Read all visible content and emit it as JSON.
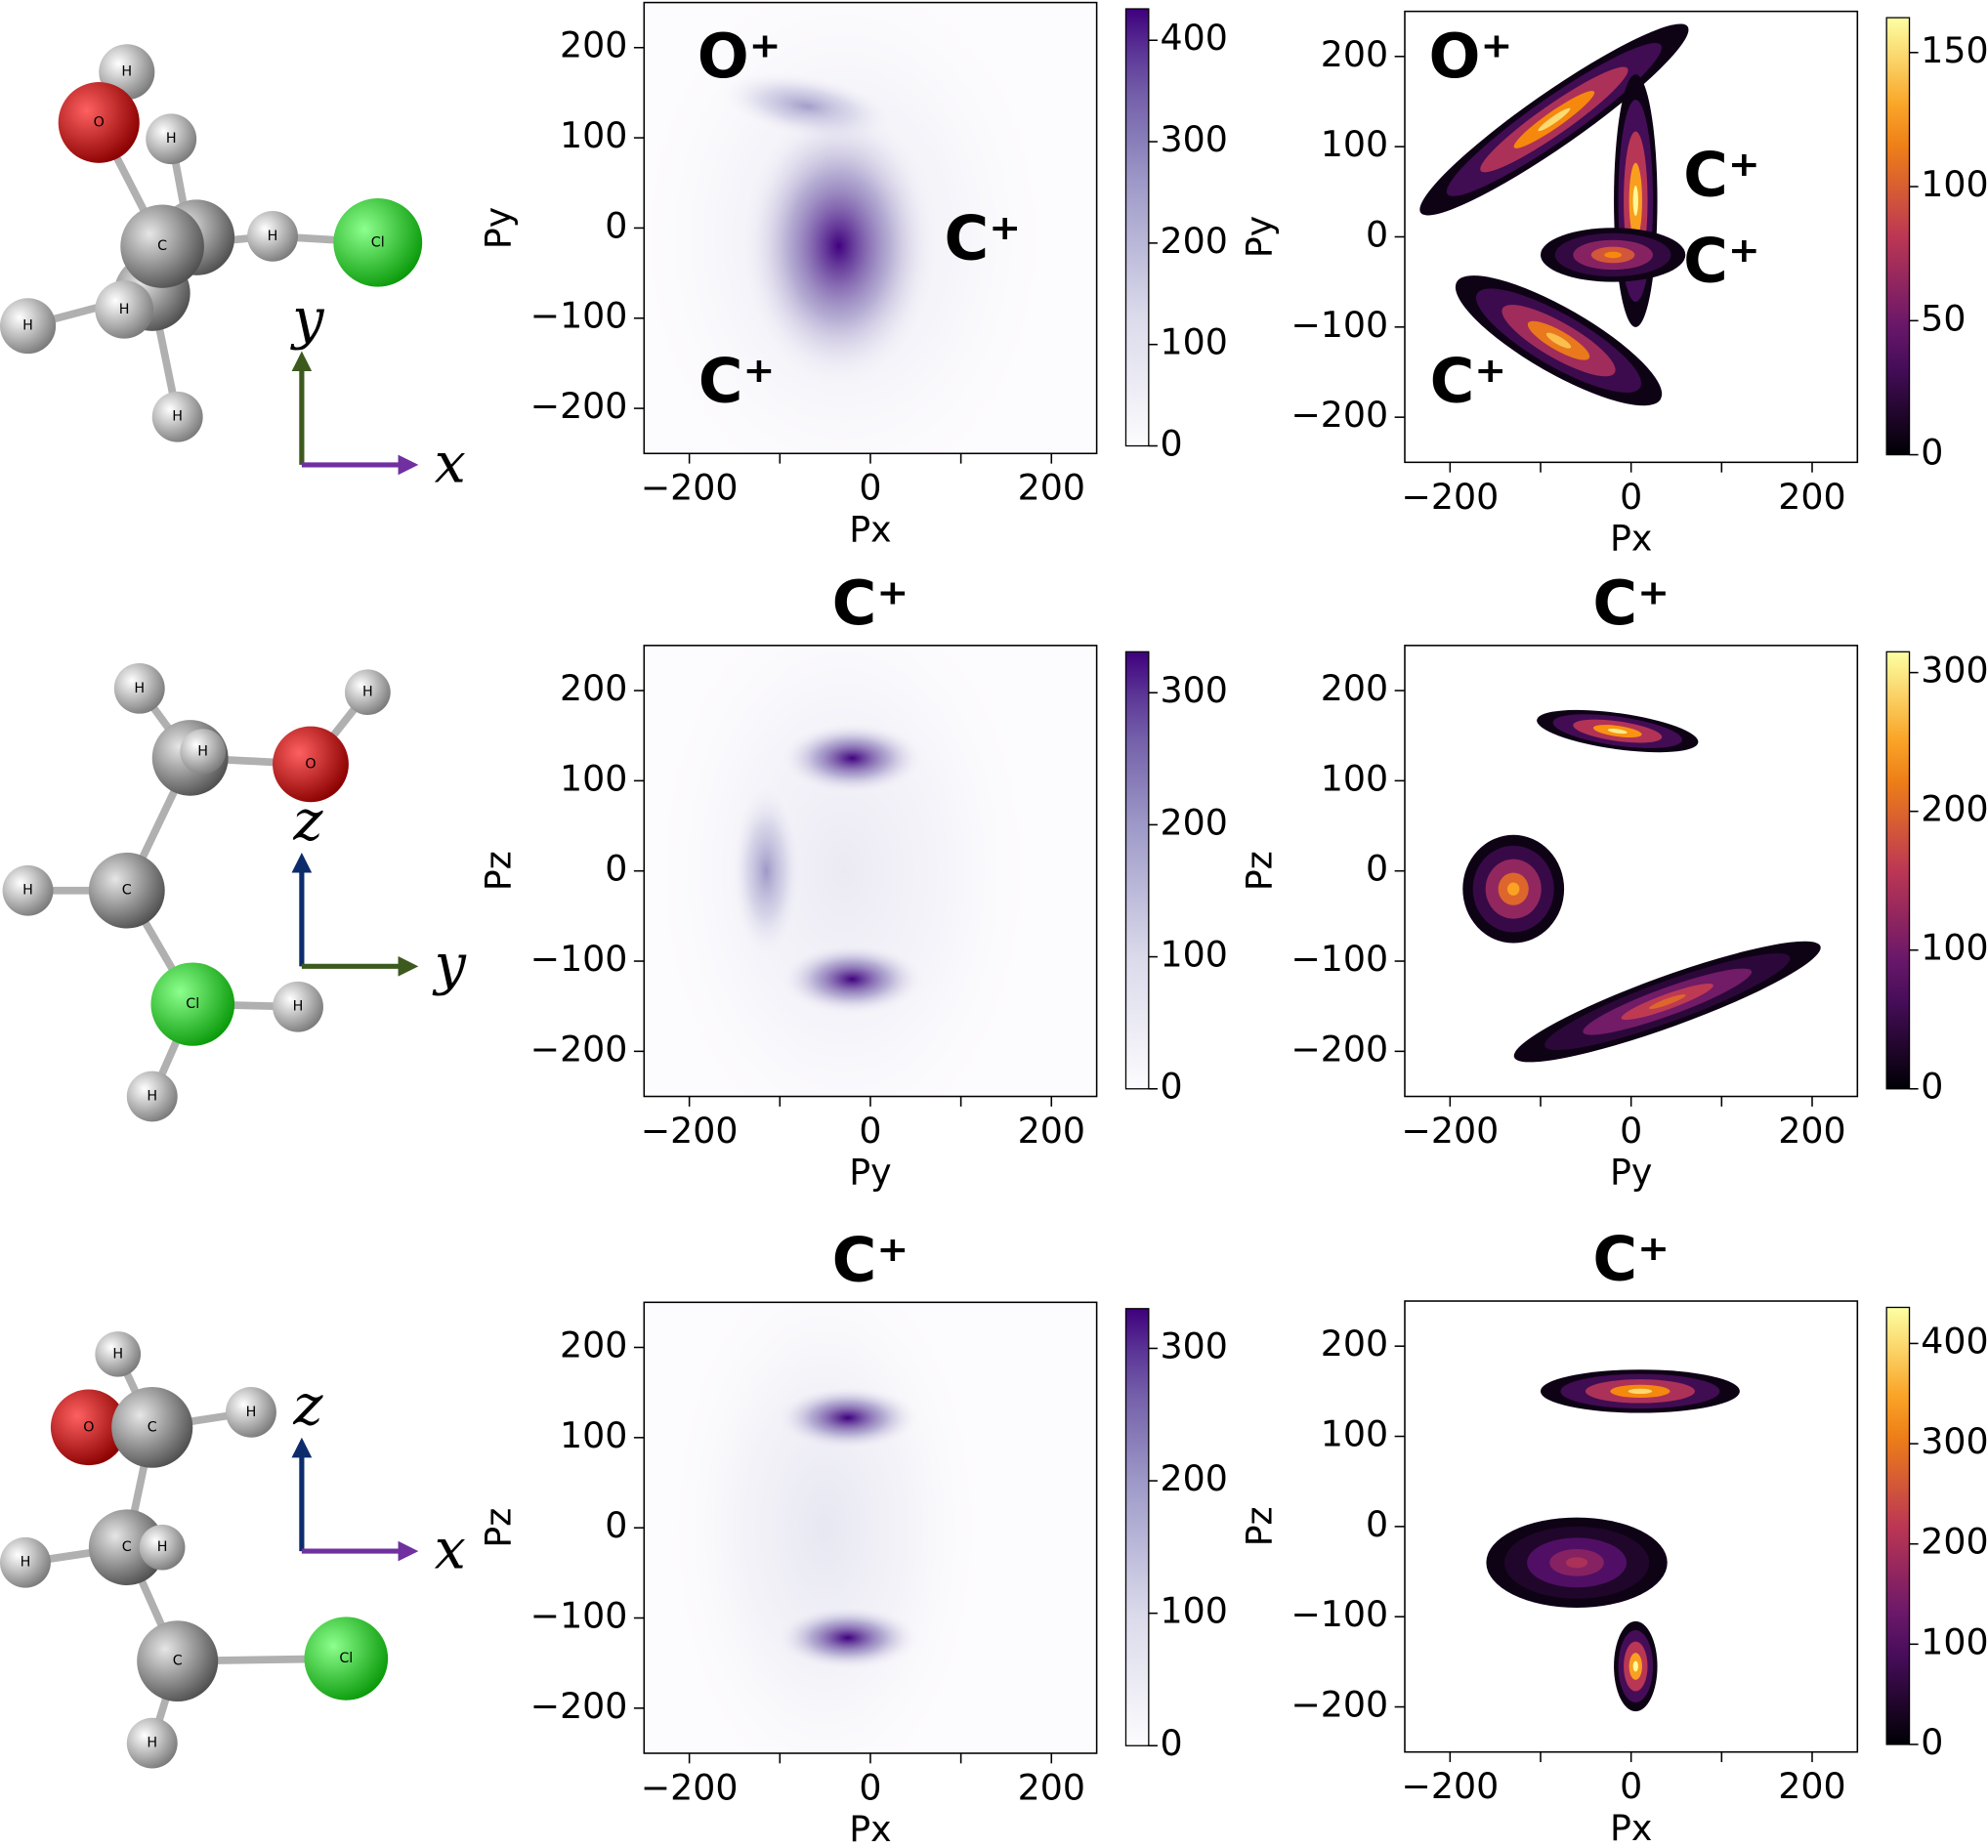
{
  "molecules": [
    {
      "atoms": [
        "H",
        "O",
        "H",
        "C",
        "H",
        "Cl",
        "H",
        "H",
        "H"
      ],
      "axes": [
        {
          "label": "y",
          "color": "#3d5a1e"
        },
        {
          "label": "x",
          "color": "#7030a0"
        }
      ]
    },
    {
      "atoms": [
        "H",
        "H",
        "O",
        "H",
        "H",
        "C",
        "Cl",
        "H",
        "H"
      ],
      "axes": [
        {
          "label": "z",
          "color": "#0d2c6c"
        },
        {
          "label": "y",
          "color": "#3d5a1e"
        }
      ]
    },
    {
      "atoms": [
        "H",
        "O",
        "C",
        "H",
        "C",
        "H",
        "H",
        "C",
        "Cl",
        "H"
      ],
      "axes": [
        {
          "label": "z",
          "color": "#0d2c6c"
        },
        {
          "label": "x",
          "color": "#7030a0"
        }
      ]
    }
  ],
  "chart_data": [
    {
      "type": "heatmap",
      "xlabel": "Px",
      "ylabel": "Py",
      "colormap": "Purples",
      "annotations": [
        "O⁺",
        "C⁺",
        "C⁺"
      ],
      "xlim": [
        -250,
        250
      ],
      "ylim": [
        -250,
        250
      ],
      "xticks": [
        {
          "value": -200,
          "label": "−200"
        },
        0,
        200
      ],
      "xminorticks": [
        -100,
        100
      ],
      "yticks": [
        {
          "value": -200,
          "label": "−200"
        },
        {
          "value": -100,
          "label": "−100"
        },
        0,
        100,
        200
      ],
      "clim": [
        0,
        431
      ],
      "cticks": [
        0,
        100,
        200,
        300,
        400
      ],
      "clusters": [
        {
          "x": -30,
          "y": -10,
          "sx": 120,
          "sy": 160,
          "angle": 0,
          "peak": 60
        },
        {
          "x": -70,
          "y": 135,
          "sx": 50,
          "sy": 18,
          "angle": -10,
          "peak": 250
        },
        {
          "x": -35,
          "y": -20,
          "sx": 55,
          "sy": 80,
          "angle": 0,
          "peak": 430
        }
      ]
    },
    {
      "type": "heatmap",
      "xlabel": "Px",
      "ylabel": "Py",
      "colormap": "inferno",
      "annotations": [
        "O⁺",
        "C⁺",
        "C⁺",
        "C⁺"
      ],
      "xlim": [
        -250,
        250
      ],
      "ylim": [
        -250,
        250
      ],
      "xticks": [
        {
          "value": -200,
          "label": "−200"
        },
        0,
        200
      ],
      "xminorticks": [
        -100,
        100
      ],
      "yticks": [
        {
          "value": -200,
          "label": "−200"
        },
        {
          "value": -100,
          "label": "−100"
        },
        0,
        100,
        200
      ],
      "clim": [
        0,
        163
      ],
      "cticks": [
        0,
        50,
        100,
        150
      ],
      "clusters": [
        {
          "x": -85,
          "y": 130,
          "sx": 90,
          "sy": 15,
          "angle": 35,
          "peak": 150
        },
        {
          "x": 5,
          "y": 40,
          "sx": 12,
          "sy": 70,
          "angle": 0,
          "peak": 160
        },
        {
          "x": -20,
          "y": -20,
          "sx": 40,
          "sy": 15,
          "angle": 0,
          "peak": 120
        },
        {
          "x": -80,
          "y": -115,
          "sx": 65,
          "sy": 18,
          "angle": -30,
          "peak": 140
        }
      ]
    },
    {
      "type": "heatmap",
      "title": "C⁺",
      "xlabel": "Py",
      "ylabel": "Pz",
      "colormap": "Purples",
      "xlim": [
        -250,
        250
      ],
      "ylim": [
        -250,
        250
      ],
      "xticks": [
        {
          "value": -200,
          "label": "−200"
        },
        0,
        200
      ],
      "xminorticks": [
        -100,
        100
      ],
      "yticks": [
        {
          "value": -200,
          "label": "−200"
        },
        {
          "value": -100,
          "label": "−100"
        },
        0,
        100,
        200
      ],
      "clim": [
        0,
        331
      ],
      "cticks": [
        0,
        100,
        200,
        300
      ],
      "clusters": [
        {
          "x": -30,
          "y": 0,
          "sx": 110,
          "sy": 170,
          "angle": 0,
          "peak": 50
        },
        {
          "x": -115,
          "y": 0,
          "sx": 20,
          "sy": 50,
          "angle": 0,
          "peak": 200
        },
        {
          "x": -20,
          "y": 125,
          "sx": 40,
          "sy": 20,
          "angle": 0,
          "peak": 330
        },
        {
          "x": -20,
          "y": -120,
          "sx": 40,
          "sy": 20,
          "angle": 0,
          "peak": 330
        }
      ]
    },
    {
      "type": "heatmap",
      "title": "C⁺",
      "xlabel": "Py",
      "ylabel": "Pz",
      "colormap": "inferno",
      "xlim": [
        -250,
        250
      ],
      "ylim": [
        -250,
        250
      ],
      "xticks": [
        {
          "value": -200,
          "label": "−200"
        },
        0,
        200
      ],
      "xminorticks": [
        -100,
        100
      ],
      "yticks": [
        {
          "value": -200,
          "label": "−200"
        },
        {
          "value": -100,
          "label": "−100"
        },
        0,
        100,
        200
      ],
      "clim": [
        0,
        315
      ],
      "cticks": [
        0,
        100,
        200,
        300
      ],
      "clusters": [
        {
          "x": -15,
          "y": 155,
          "sx": 45,
          "sy": 10,
          "angle": -8,
          "peak": 300
        },
        {
          "x": -130,
          "y": -20,
          "sx": 28,
          "sy": 30,
          "angle": 0,
          "peak": 250
        },
        {
          "x": 40,
          "y": -145,
          "sx": 90,
          "sy": 14,
          "angle": 20,
          "peak": 200
        }
      ]
    },
    {
      "type": "heatmap",
      "title": "C⁺",
      "xlabel": "Px",
      "ylabel": "Pz",
      "colormap": "Purples",
      "xlim": [
        -250,
        250
      ],
      "ylim": [
        -250,
        250
      ],
      "xticks": [
        {
          "value": -200,
          "label": "−200"
        },
        0,
        200
      ],
      "xminorticks": [
        -100,
        100
      ],
      "yticks": [
        {
          "value": -200,
          "label": "−200"
        },
        {
          "value": -100,
          "label": "−100"
        },
        0,
        100,
        200
      ],
      "clim": [
        0,
        330
      ],
      "cticks": [
        0,
        100,
        200,
        300
      ],
      "clusters": [
        {
          "x": -50,
          "y": 0,
          "sx": 90,
          "sy": 160,
          "angle": 0,
          "peak": 60
        },
        {
          "x": -25,
          "y": 122,
          "sx": 40,
          "sy": 18,
          "angle": 0,
          "peak": 330
        },
        {
          "x": -25,
          "y": -122,
          "sx": 40,
          "sy": 18,
          "angle": 0,
          "peak": 330
        }
      ]
    },
    {
      "type": "heatmap",
      "title": "C⁺",
      "xlabel": "Px",
      "ylabel": "Pz",
      "colormap": "inferno",
      "xlim": [
        -250,
        250
      ],
      "ylim": [
        -250,
        250
      ],
      "xticks": [
        {
          "value": -200,
          "label": "−200"
        },
        0,
        200
      ],
      "xminorticks": [
        -100,
        100
      ],
      "yticks": [
        {
          "value": -200,
          "label": "−200"
        },
        {
          "value": -100,
          "label": "−100"
        },
        0,
        100,
        200
      ],
      "clim": [
        0,
        436
      ],
      "cticks": [
        0,
        100,
        200,
        300,
        400
      ],
      "clusters": [
        {
          "x": 10,
          "y": 150,
          "sx": 55,
          "sy": 12,
          "angle": 0,
          "peak": 400
        },
        {
          "x": -60,
          "y": -40,
          "sx": 50,
          "sy": 25,
          "angle": 0,
          "peak": 200
        },
        {
          "x": 5,
          "y": -155,
          "sx": 12,
          "sy": 25,
          "angle": 0,
          "peak": 430
        }
      ]
    }
  ]
}
